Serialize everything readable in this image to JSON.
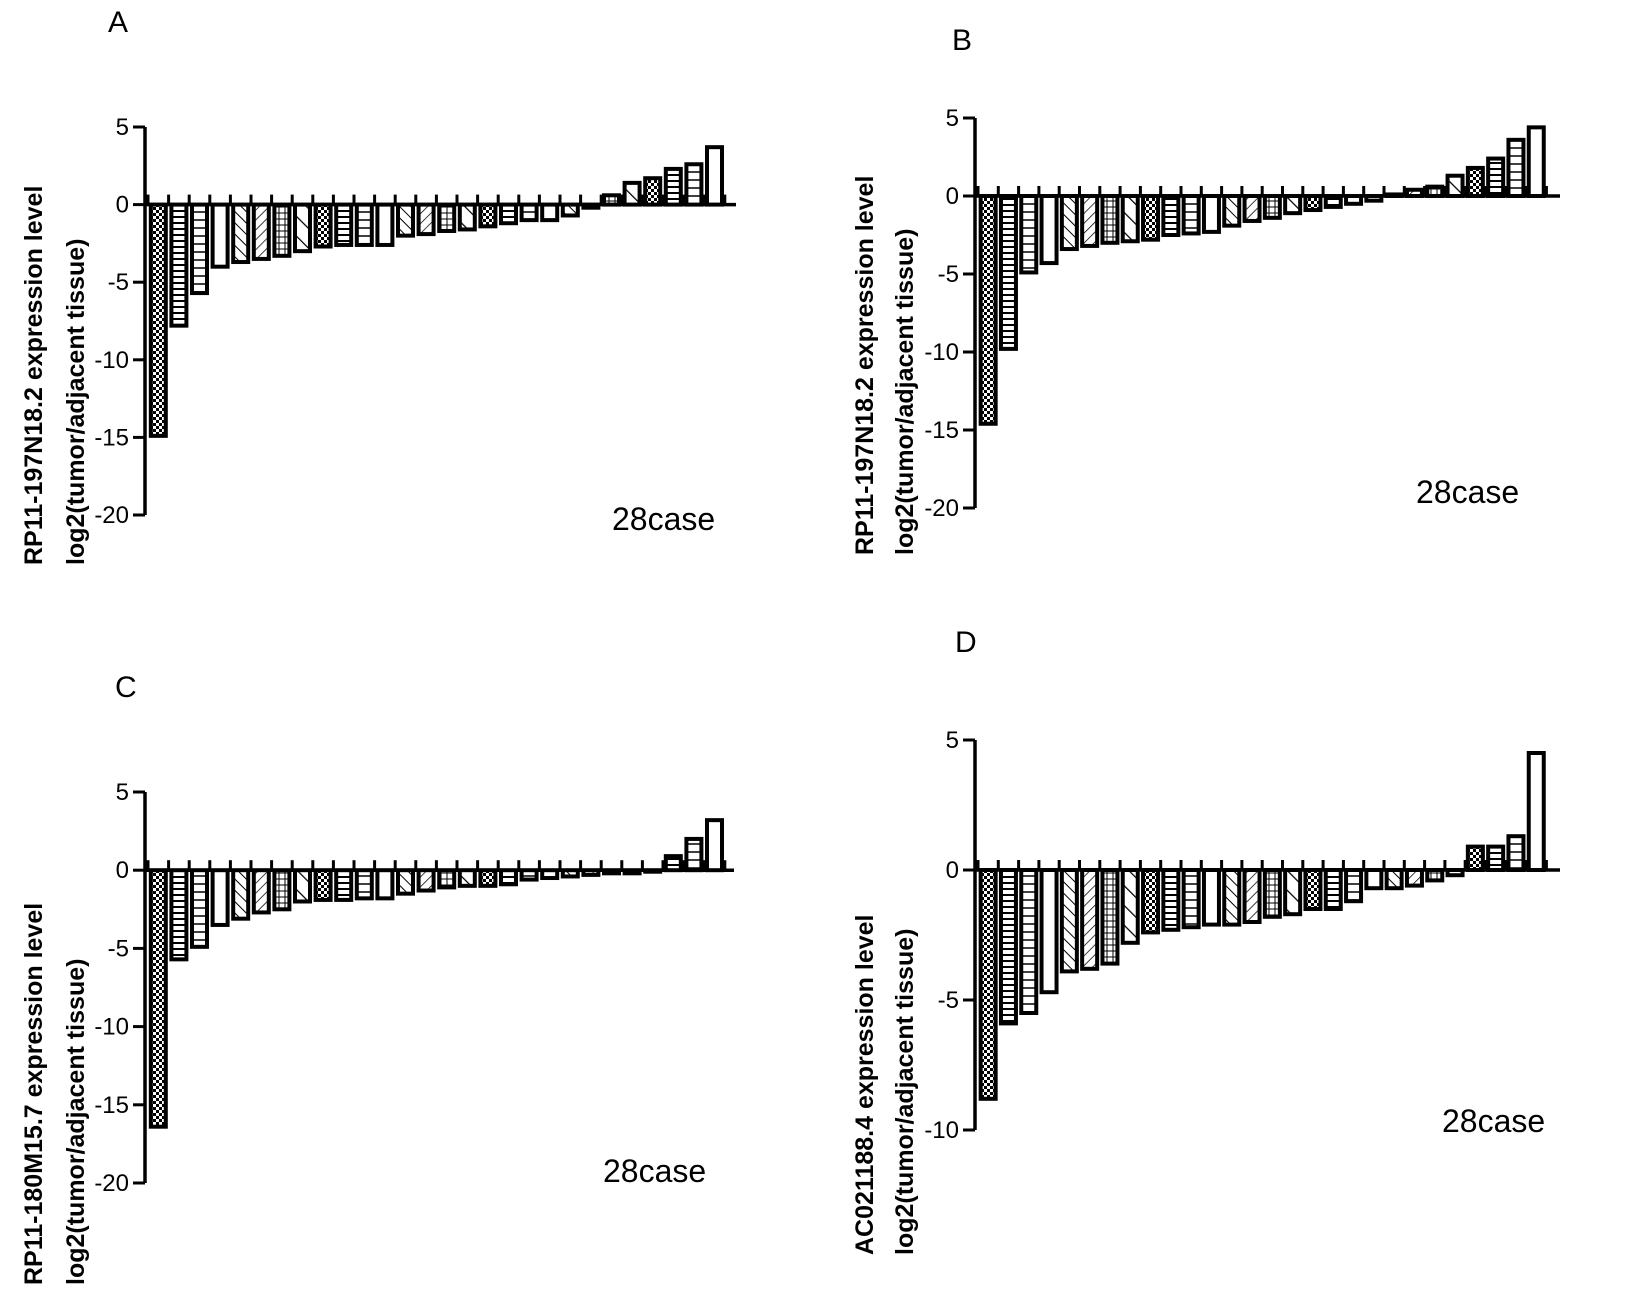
{
  "chart_data": [
    {
      "type": "bar",
      "panel": "A",
      "ylabel_line1": "RP11-197N18.2 expression level",
      "ylabel_line2": "log2(tumor/adjacent tissue)",
      "annotation": "28case",
      "ylim": [
        -20,
        5
      ],
      "yticks": [
        5,
        0,
        -5,
        -10,
        -15,
        -20
      ],
      "values": [
        -14.9,
        -7.8,
        -5.7,
        -4.0,
        -3.7,
        -3.5,
        -3.3,
        -3.0,
        -2.7,
        -2.6,
        -2.6,
        -2.6,
        -2.0,
        -1.9,
        -1.7,
        -1.6,
        -1.4,
        -1.2,
        -1.0,
        -1.0,
        -0.7,
        -0.2,
        0.6,
        1.4,
        1.7,
        2.3,
        2.6,
        3.7
      ]
    },
    {
      "type": "bar",
      "panel": "B",
      "ylabel_line1": "RP11-197N18.2 expression level",
      "ylabel_line2": "log2(tumor/adjacent tissue)",
      "annotation": "28case",
      "ylim": [
        -20,
        5
      ],
      "yticks": [
        5,
        0,
        -5,
        -10,
        -15,
        -20
      ],
      "values": [
        -14.6,
        -9.8,
        -4.9,
        -4.3,
        -3.4,
        -3.2,
        -3.0,
        -2.9,
        -2.8,
        -2.5,
        -2.4,
        -2.3,
        -1.9,
        -1.6,
        -1.4,
        -1.1,
        -0.9,
        -0.7,
        -0.5,
        -0.3,
        0.1,
        0.4,
        0.6,
        1.3,
        1.8,
        2.4,
        3.6,
        4.4
      ]
    },
    {
      "type": "bar",
      "panel": "C",
      "ylabel_line1": "RP11-180M15.7 expression level",
      "ylabel_line2": "log2(tumor/adjacent tissue)",
      "annotation": "28case",
      "ylim": [
        -20,
        5
      ],
      "yticks": [
        5,
        0,
        -5,
        -10,
        -15,
        -20
      ],
      "values": [
        -16.4,
        -5.7,
        -4.9,
        -3.5,
        -3.1,
        -2.7,
        -2.5,
        -2.0,
        -1.9,
        -1.9,
        -1.8,
        -1.8,
        -1.5,
        -1.3,
        -1.1,
        -1.0,
        -1.0,
        -0.9,
        -0.6,
        -0.5,
        -0.4,
        -0.3,
        -0.2,
        -0.2,
        0.0,
        0.9,
        2.0,
        3.2
      ]
    },
    {
      "type": "bar",
      "panel": "D",
      "ylabel_line1": "AC021188.4 expression level",
      "ylabel_line2": "log2(tumor/adjacent tissue)",
      "annotation": "28case",
      "ylim": [
        -10,
        5
      ],
      "yticks": [
        5,
        0,
        -5,
        -10
      ],
      "values": [
        -8.8,
        -5.9,
        -5.5,
        -4.7,
        -3.9,
        -3.8,
        -3.6,
        -2.8,
        -2.4,
        -2.3,
        -2.2,
        -2.1,
        -2.1,
        -2.0,
        -1.8,
        -1.7,
        -1.5,
        -1.5,
        -1.2,
        -0.7,
        -0.7,
        -0.6,
        -0.4,
        -0.2,
        0.9,
        0.9,
        1.3,
        4.5
      ]
    }
  ]
}
